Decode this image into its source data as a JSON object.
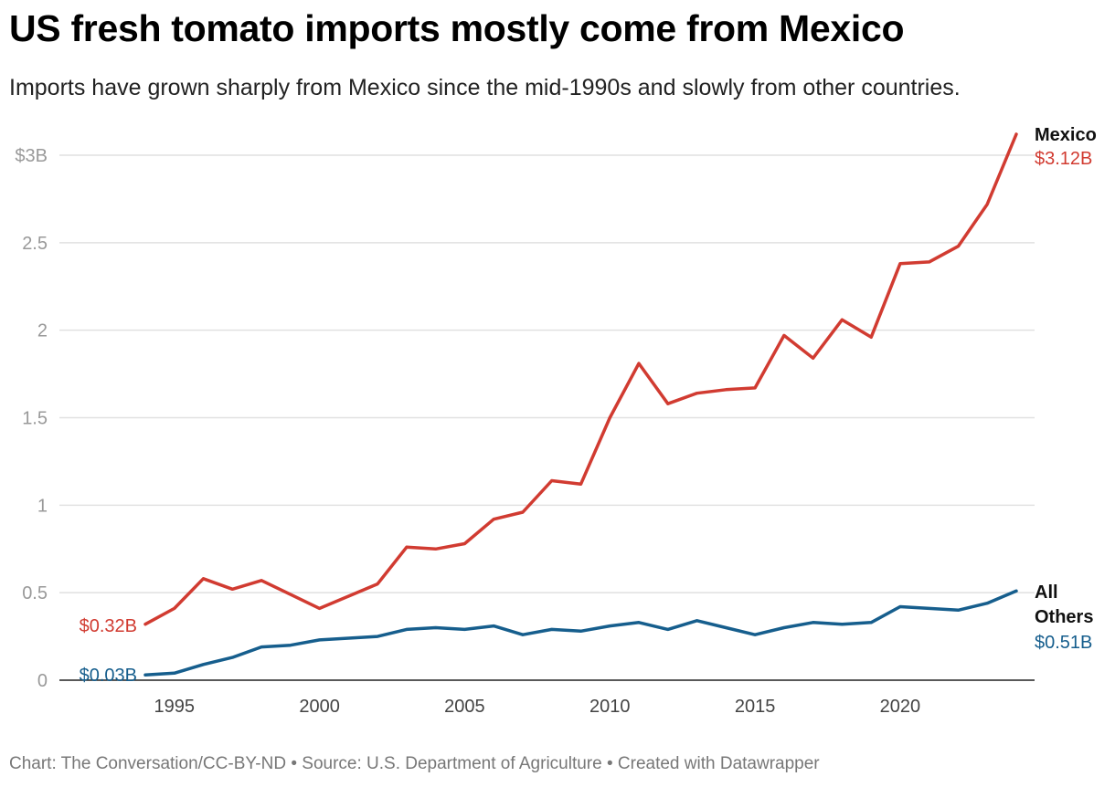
{
  "title": "US fresh tomato imports mostly come from Mexico",
  "subtitle": "Imports have grown sharply from Mexico since the mid-1990s and slowly from other countries.",
  "footer": "Chart: The Conversation/CC-BY-ND • Source: U.S. Department of Agriculture • Created with Datawrapper",
  "chart_data": {
    "type": "line",
    "title": "US fresh tomato imports mostly come from Mexico",
    "subtitle": "Imports have grown sharply from Mexico since the mid-1990s and slowly from other countries.",
    "xlabel": "",
    "ylabel": "",
    "ylim": [
      0,
      3.12
    ],
    "xlim": [
      1994,
      2024
    ],
    "grid": true,
    "y_ticks": [
      0,
      0.5,
      1,
      1.5,
      2,
      2.5,
      3
    ],
    "y_tick_labels": [
      "0",
      "0.5",
      "1",
      "1.5",
      "2",
      "2.5",
      "$3B"
    ],
    "x_ticks": [
      1995,
      2000,
      2005,
      2010,
      2015,
      2020
    ],
    "x_tick_labels": [
      "1995",
      "2000",
      "2005",
      "2010",
      "2015",
      "2020"
    ],
    "x": [
      1994,
      1995,
      1996,
      1997,
      1998,
      1999,
      2000,
      2001,
      2002,
      2003,
      2004,
      2005,
      2006,
      2007,
      2008,
      2009,
      2010,
      2011,
      2012,
      2013,
      2014,
      2015,
      2016,
      2017,
      2018,
      2019,
      2020,
      2021,
      2022,
      2023,
      2024
    ],
    "series": [
      {
        "name": "Mexico",
        "color": "#d13b31",
        "start_label": "$0.32B",
        "end_label": "$3.12B",
        "values": [
          0.32,
          0.41,
          0.58,
          0.52,
          0.57,
          0.49,
          0.41,
          0.48,
          0.55,
          0.76,
          0.75,
          0.78,
          0.92,
          0.96,
          1.14,
          1.12,
          1.5,
          1.81,
          1.58,
          1.64,
          1.66,
          1.67,
          1.97,
          1.84,
          2.06,
          1.96,
          2.38,
          2.39,
          2.48,
          2.72,
          3.12
        ]
      },
      {
        "name": "All Others",
        "color": "#165e8d",
        "start_label": "$0.03B",
        "end_label": "$0.51B",
        "values": [
          0.03,
          0.04,
          0.09,
          0.13,
          0.19,
          0.2,
          0.23,
          0.24,
          0.25,
          0.29,
          0.3,
          0.29,
          0.31,
          0.26,
          0.29,
          0.28,
          0.31,
          0.33,
          0.29,
          0.34,
          0.3,
          0.26,
          0.3,
          0.33,
          0.32,
          0.33,
          0.42,
          0.41,
          0.4,
          0.44,
          0.51
        ]
      }
    ]
  }
}
